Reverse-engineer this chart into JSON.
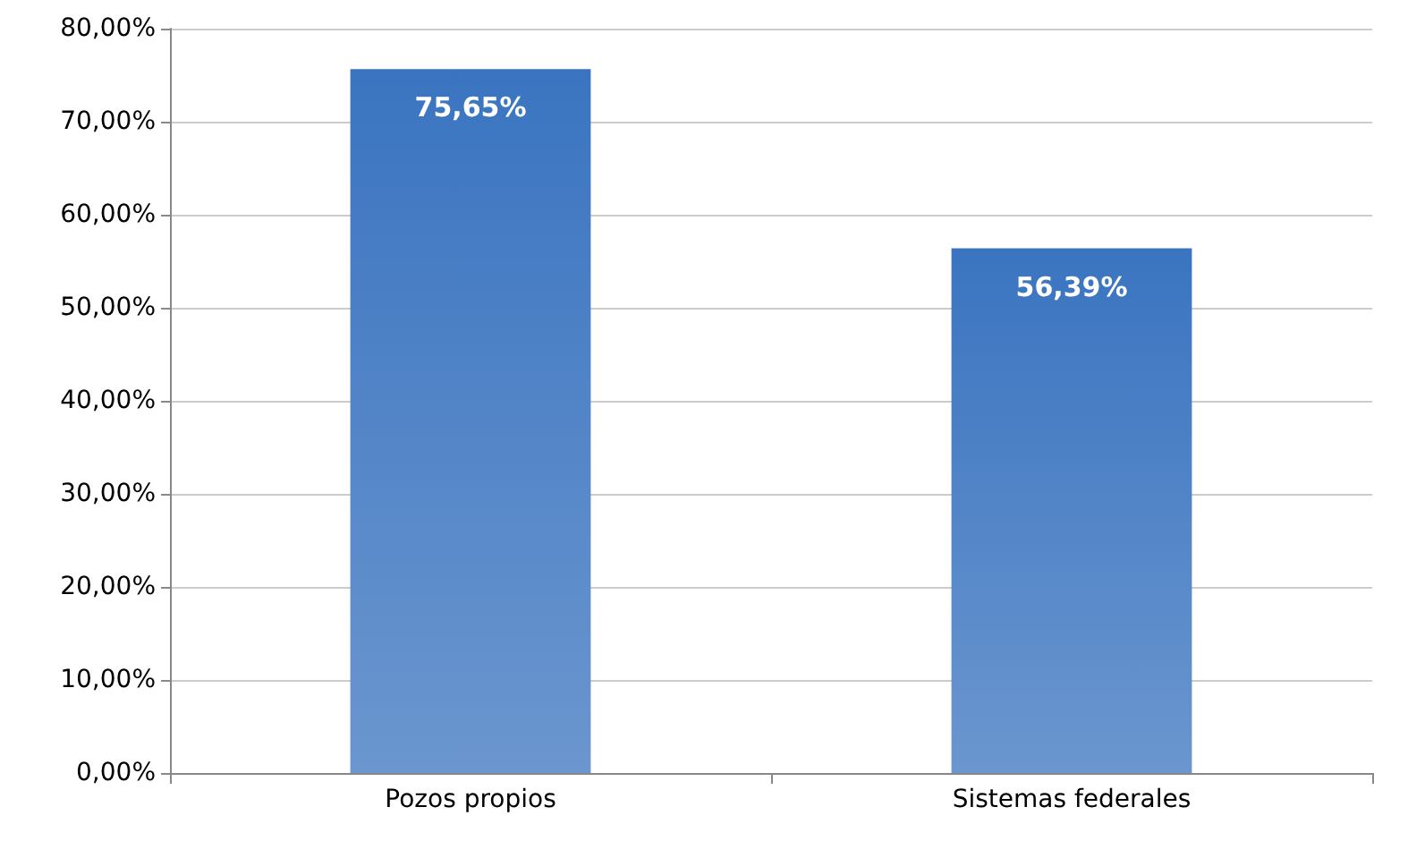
{
  "chart_data": {
    "type": "bar",
    "categories": [
      "Pozos propios",
      "Sistemas federales"
    ],
    "values": [
      75.65,
      56.39
    ],
    "value_labels": [
      "75,65%",
      "56,39%"
    ],
    "color": "#3a74c0",
    "ylim": [
      0,
      80
    ],
    "yticks": [
      {
        "value": 0,
        "label": "0,00%"
      },
      {
        "value": 10,
        "label": "10,00%"
      },
      {
        "value": 20,
        "label": "20,00%"
      },
      {
        "value": 30,
        "label": "30,00%"
      },
      {
        "value": 40,
        "label": "40,00%"
      },
      {
        "value": 50,
        "label": "50,00%"
      },
      {
        "value": 60,
        "label": "60,00%"
      },
      {
        "value": 70,
        "label": "70,00%"
      },
      {
        "value": 80,
        "label": "80,00%"
      }
    ],
    "grid": "y"
  }
}
